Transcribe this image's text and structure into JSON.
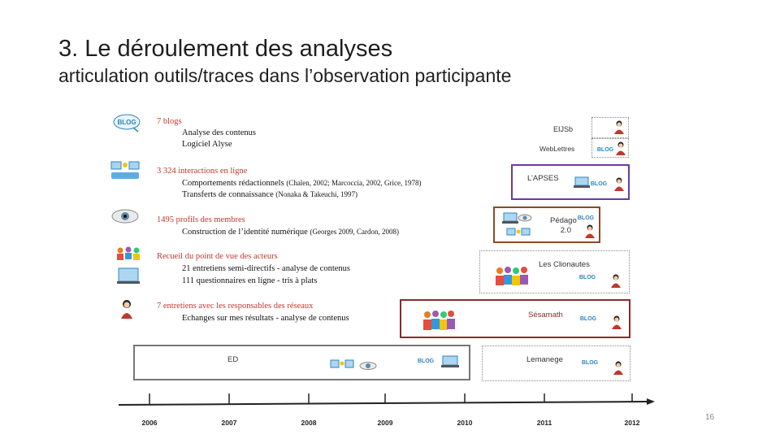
{
  "slide": {
    "title": "3. Le déroulement des analyses",
    "subtitle": "articulation outils/traces dans l’observation participante",
    "page_number": "16"
  },
  "rows": [
    {
      "icon": "blog-icon",
      "title": "7 blogs",
      "lines": [
        {
          "text": "Analyse des contenus",
          "cite": ""
        },
        {
          "text": "Logiciel Alyse",
          "cite": ""
        }
      ]
    },
    {
      "icon": "computers-network-icon",
      "title": "3 324 interactions  en ligne",
      "lines": [
        {
          "text": "Comportements rédactionnels ",
          "cite": "(Chalen, 2002; Marcoccia, 2002, Grice, 1978)"
        },
        {
          "text": "Transferts de connaissance ",
          "cite": "(Nonaka & Takeuchi, 1997)"
        }
      ]
    },
    {
      "icon": "eye-icon",
      "title": "1495 profils des membres",
      "lines": [
        {
          "text": "Construction de l’identité numérique ",
          "cite": "(Georges 2009, Cardon, 2008)"
        }
      ]
    },
    {
      "icon": "group-people-icon",
      "title": "Recueil du point de vue des acteurs",
      "lines": [
        {
          "text": "21 entretiens semi-directifs - analyse de contenus",
          "cite": ""
        },
        {
          "text": "111 questionnaires en ligne - tris à plats",
          "cite": ""
        }
      ]
    },
    {
      "icon": "person-icon",
      "title": "7 entretiens avec les responsables des réseaux",
      "lines": [
        {
          "text": "Echanges sur mes résultats - analyse de contenus",
          "cite": ""
        }
      ]
    }
  ],
  "networks": [
    {
      "name": "EIJSb",
      "border_color": "#999999",
      "style": "dotted"
    },
    {
      "name": "WebLettres",
      "border_color": "#999999",
      "style": "dotted"
    },
    {
      "name": "L’APSES",
      "border_color": "#6a3aa8",
      "style": "solid"
    },
    {
      "name": "Pédago\n2.0",
      "border_color": "#8b4a2b",
      "style": "solid"
    },
    {
      "name": "Les Clionautes",
      "border_color": "#999999",
      "style": "dotted"
    },
    {
      "name": "Sésamath",
      "border_color": "#8b2a2a",
      "style": "solid"
    },
    {
      "name": "ED",
      "border_color": "#777777",
      "style": "solid"
    },
    {
      "name": "Lemanege",
      "border_color": "#999999",
      "style": "dotted"
    }
  ],
  "badge_text": "BLOG",
  "timeline": {
    "years": [
      "2006",
      "2007",
      "2008",
      "2009",
      "2010",
      "2011",
      "2012"
    ]
  },
  "colors": {
    "accent_red": "#c0392b",
    "blog_blue": "#2e86c1",
    "purple": "#6a3aa8",
    "brown": "#8b4a2b",
    "dark_red": "#8b2a2a"
  }
}
